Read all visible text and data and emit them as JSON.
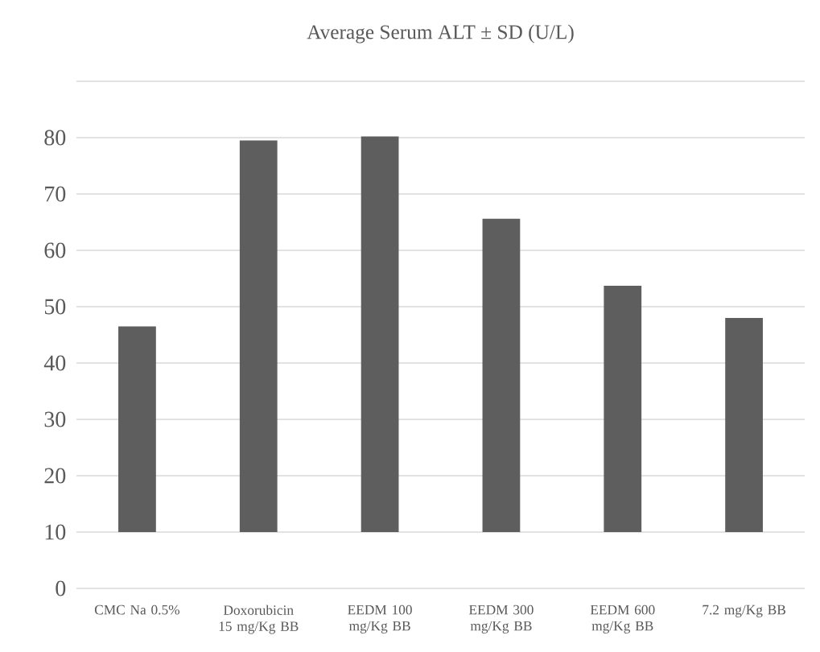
{
  "chart_data": {
    "type": "bar",
    "title": "Average Serum ALT  ± SD (U/L)",
    "categories": [
      "CMC Na 0.5%",
      "Doxorubicin 15 mg/Kg BB",
      "EEDM 100 mg/Kg BB",
      "EEDM 300 mg/Kg BB",
      "EEDM 600 mg/Kg BB",
      "7.2 mg/Kg BB"
    ],
    "values": [
      36.5,
      69.5,
      70.2,
      55.6,
      43.7,
      38.0
    ],
    "base": [
      10,
      10,
      10,
      10,
      10,
      10
    ],
    "color": "#5e5e5e",
    "ylim": [
      0,
      90
    ],
    "yticks": [
      0,
      10,
      20,
      30,
      40,
      50,
      60,
      70,
      80,
      {
        "value": 90,
        "label": null
      }
    ],
    "grid": "y"
  }
}
